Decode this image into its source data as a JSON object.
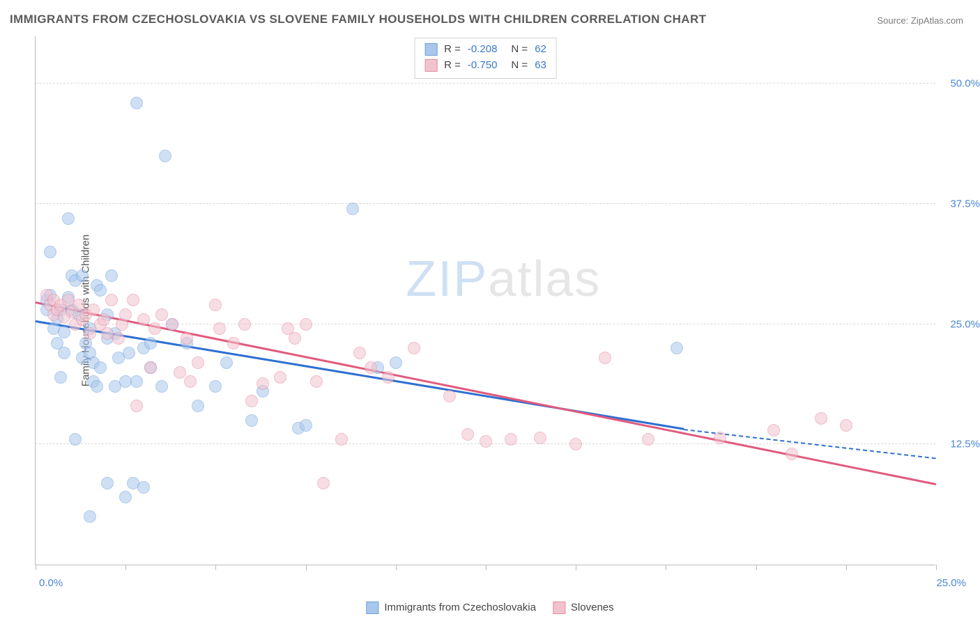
{
  "title": "IMMIGRANTS FROM CZECHOSLOVAKIA VS SLOVENE FAMILY HOUSEHOLDS WITH CHILDREN CORRELATION CHART",
  "source": "Source: ZipAtlas.com",
  "watermark_zip": "ZIP",
  "watermark_atlas": "atlas",
  "y_axis_title": "Family Households with Children",
  "chart": {
    "type": "scatter",
    "xlim": [
      0,
      25
    ],
    "ylim": [
      0,
      55
    ],
    "x_tick_positions": [
      0,
      2.5,
      5.0,
      7.5,
      10.0,
      12.5,
      15.0,
      17.5,
      20.0,
      22.5,
      25.0
    ],
    "x_tick_labels": {
      "0": "0.0%",
      "25": "25.0%"
    },
    "y_grid_positions": [
      12.5,
      25.0,
      37.5,
      50.0
    ],
    "y_tick_labels": [
      "12.5%",
      "25.0%",
      "37.5%",
      "50.0%"
    ],
    "background_color": "#ffffff",
    "grid_color": "#d8d8d8",
    "axis_color": "#bdbdbd",
    "tick_label_color": "#4a87d6",
    "label_fontsize": 15,
    "title_fontsize": 17,
    "title_color": "#5a5a5a",
    "marker_radius": 9,
    "marker_opacity": 0.55,
    "series": [
      {
        "name": "Immigrants from Czechoslovakia",
        "color_fill": "#a9c7ec",
        "color_stroke": "#6ea0de",
        "trend_color": "#2d6fd0",
        "R": "-0.208",
        "N": "62",
        "trend": {
          "x1": 0.0,
          "y1": 25.2,
          "x2": 18.0,
          "y2": 14.0,
          "dash_x2": 25.0,
          "dash_y2": 11.0
        },
        "points": [
          [
            0.3,
            27.5
          ],
          [
            0.3,
            26.5
          ],
          [
            0.4,
            28.0
          ],
          [
            0.4,
            32.5
          ],
          [
            0.5,
            24.5
          ],
          [
            0.6,
            25.6
          ],
          [
            0.6,
            23.0
          ],
          [
            0.7,
            26.5
          ],
          [
            0.7,
            19.5
          ],
          [
            0.8,
            24.2
          ],
          [
            0.8,
            22.0
          ],
          [
            0.9,
            27.8
          ],
          [
            0.9,
            36.0
          ],
          [
            1.0,
            26.5
          ],
          [
            1.0,
            30.0
          ],
          [
            1.1,
            29.5
          ],
          [
            1.1,
            13.0
          ],
          [
            1.2,
            26.0
          ],
          [
            1.3,
            21.5
          ],
          [
            1.3,
            30.0
          ],
          [
            1.4,
            23.0
          ],
          [
            1.5,
            22.0
          ],
          [
            1.5,
            24.5
          ],
          [
            1.5,
            5.0
          ],
          [
            1.6,
            19.0
          ],
          [
            1.6,
            21.0
          ],
          [
            1.7,
            18.5
          ],
          [
            1.7,
            29.0
          ],
          [
            1.8,
            28.5
          ],
          [
            1.8,
            20.5
          ],
          [
            2.0,
            26.0
          ],
          [
            2.0,
            23.5
          ],
          [
            2.0,
            8.5
          ],
          [
            2.1,
            30.0
          ],
          [
            2.2,
            24.0
          ],
          [
            2.2,
            18.5
          ],
          [
            2.3,
            21.5
          ],
          [
            2.5,
            19.0
          ],
          [
            2.5,
            7.0
          ],
          [
            2.6,
            22.0
          ],
          [
            2.7,
            8.5
          ],
          [
            2.8,
            19.0
          ],
          [
            2.8,
            48.0
          ],
          [
            3.0,
            22.5
          ],
          [
            3.0,
            8.0
          ],
          [
            3.2,
            23.0
          ],
          [
            3.2,
            20.5
          ],
          [
            3.5,
            18.5
          ],
          [
            3.6,
            42.5
          ],
          [
            3.8,
            25.0
          ],
          [
            4.2,
            23.0
          ],
          [
            4.5,
            16.5
          ],
          [
            5.0,
            18.5
          ],
          [
            5.3,
            21.0
          ],
          [
            6.0,
            15.0
          ],
          [
            6.3,
            18.0
          ],
          [
            7.3,
            14.2
          ],
          [
            7.5,
            14.5
          ],
          [
            8.8,
            37.0
          ],
          [
            9.5,
            20.5
          ],
          [
            10.0,
            21.0
          ],
          [
            17.8,
            22.5
          ]
        ]
      },
      {
        "name": "Slovenes",
        "color_fill": "#f2c3cf",
        "color_stroke": "#e68aa1",
        "trend_color": "#e15a7d",
        "R": "-0.750",
        "N": "63",
        "trend": {
          "x1": 0.0,
          "y1": 27.2,
          "x2": 25.0,
          "y2": 8.3
        },
        "points": [
          [
            0.3,
            28.0
          ],
          [
            0.4,
            27.0
          ],
          [
            0.5,
            26.0
          ],
          [
            0.5,
            27.5
          ],
          [
            0.6,
            26.5
          ],
          [
            0.7,
            27.0
          ],
          [
            0.8,
            25.8
          ],
          [
            0.9,
            27.5
          ],
          [
            1.0,
            26.3
          ],
          [
            1.1,
            25.0
          ],
          [
            1.2,
            27.0
          ],
          [
            1.3,
            25.5
          ],
          [
            1.4,
            26.0
          ],
          [
            1.5,
            24.0
          ],
          [
            1.6,
            26.5
          ],
          [
            1.8,
            25.0
          ],
          [
            1.9,
            25.5
          ],
          [
            2.0,
            24.0
          ],
          [
            2.1,
            27.5
          ],
          [
            2.3,
            23.5
          ],
          [
            2.4,
            25.0
          ],
          [
            2.5,
            26.0
          ],
          [
            2.7,
            27.5
          ],
          [
            2.8,
            16.5
          ],
          [
            3.0,
            25.5
          ],
          [
            3.2,
            20.5
          ],
          [
            3.3,
            24.5
          ],
          [
            3.5,
            26.0
          ],
          [
            3.8,
            25.0
          ],
          [
            4.0,
            20.0
          ],
          [
            4.2,
            23.5
          ],
          [
            4.3,
            19.0
          ],
          [
            4.5,
            21.0
          ],
          [
            5.0,
            27.0
          ],
          [
            5.1,
            24.5
          ],
          [
            5.5,
            23.0
          ],
          [
            5.8,
            25.0
          ],
          [
            6.0,
            17.0
          ],
          [
            6.3,
            18.8
          ],
          [
            6.8,
            19.5
          ],
          [
            7.0,
            24.5
          ],
          [
            7.2,
            23.5
          ],
          [
            7.5,
            25.0
          ],
          [
            7.8,
            19.0
          ],
          [
            8.0,
            8.5
          ],
          [
            8.5,
            13.0
          ],
          [
            9.0,
            22.0
          ],
          [
            9.3,
            20.5
          ],
          [
            9.8,
            19.5
          ],
          [
            10.5,
            22.5
          ],
          [
            11.5,
            17.5
          ],
          [
            12.0,
            13.5
          ],
          [
            12.5,
            12.8
          ],
          [
            13.2,
            13.0
          ],
          [
            14.0,
            13.2
          ],
          [
            15.0,
            12.5
          ],
          [
            15.8,
            21.5
          ],
          [
            17.0,
            13.0
          ],
          [
            19.0,
            13.2
          ],
          [
            20.5,
            14.0
          ],
          [
            21.0,
            11.5
          ],
          [
            21.8,
            15.2
          ],
          [
            22.5,
            14.5
          ]
        ]
      }
    ]
  }
}
